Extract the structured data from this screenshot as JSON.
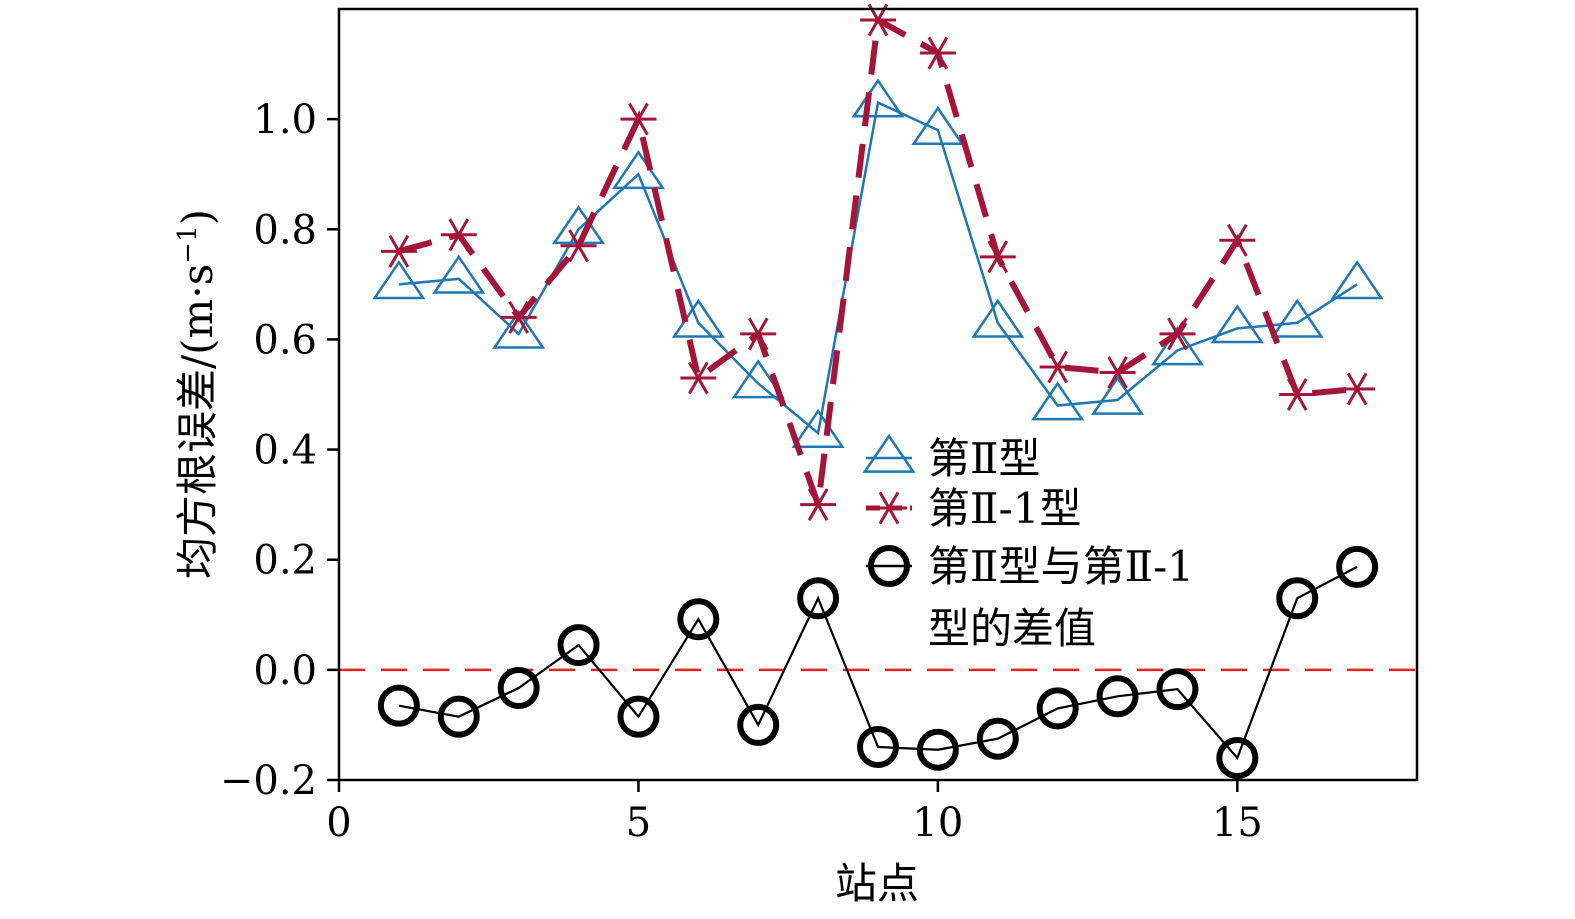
{
  "chart_data": {
    "type": "line",
    "xlabel": "站点",
    "ylabel": "均方根误差/(m·s",
    "ylabel_sup": "−1",
    "ylabel_close": ")",
    "xlim": [
      0,
      18
    ],
    "ylim": [
      -0.2,
      1.2
    ],
    "xticks": [
      0,
      5,
      10,
      15
    ],
    "xtick_labels": [
      "0",
      "5",
      "10",
      "15"
    ],
    "yticks": [
      -0.2,
      0.0,
      0.2,
      0.4,
      0.6,
      0.8,
      1.0
    ],
    "ytick_labels": [
      "−0.2",
      "0.0",
      "0.2",
      "0.4",
      "0.6",
      "0.8",
      "1.0"
    ],
    "grid": false,
    "legend_placement": "center",
    "reference_line": {
      "y": 0.0,
      "color": "#e8221f",
      "style": "dashed"
    },
    "x": [
      1,
      2,
      3,
      4,
      5,
      6,
      7,
      8,
      9,
      10,
      11,
      12,
      13,
      14,
      15,
      16,
      17
    ],
    "series": [
      {
        "name": "第Ⅱ型",
        "marker": "triangle",
        "color": "#1f77b4",
        "line_style": "solid",
        "values": [
          0.7,
          0.71,
          0.61,
          0.8,
          0.9,
          0.63,
          0.52,
          0.43,
          1.03,
          0.98,
          0.63,
          0.48,
          0.49,
          0.58,
          0.62,
          0.63,
          0.7
        ]
      },
      {
        "name": "第Ⅱ-1型",
        "marker": "asterisk",
        "color": "#a3163a",
        "line_style": "dashed",
        "values": [
          0.76,
          0.79,
          0.64,
          0.77,
          1.0,
          0.53,
          0.61,
          0.3,
          1.18,
          1.12,
          0.75,
          0.55,
          0.54,
          0.61,
          0.78,
          0.5,
          0.51
        ]
      },
      {
        "name": "第Ⅱ型与第Ⅱ-1型的差值",
        "legend_lines": [
          "第Ⅱ型与第Ⅱ-1",
          "型的差值"
        ],
        "marker": "circle",
        "color": "#000000",
        "line_style": "solid",
        "values": [
          -0.065,
          -0.085,
          -0.033,
          0.045,
          -0.085,
          0.092,
          -0.1,
          0.13,
          -0.14,
          -0.145,
          -0.125,
          -0.07,
          -0.048,
          -0.035,
          -0.16,
          0.13,
          0.187
        ]
      }
    ]
  }
}
